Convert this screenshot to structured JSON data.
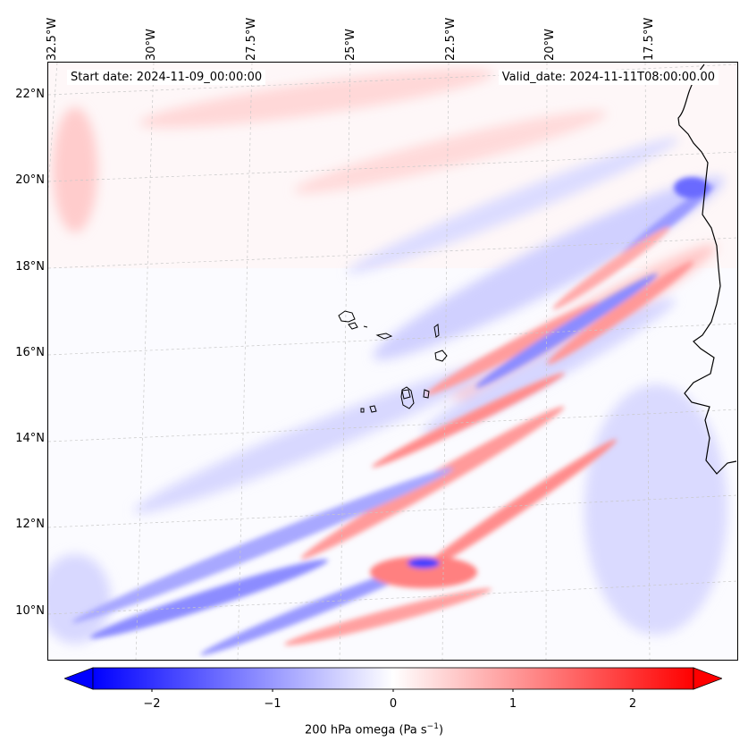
{
  "header": {
    "start_date": "Start date: 2024-11-09_00:00:00",
    "valid_date": "Valid_date: 2024-11-11T08:00:00.00"
  },
  "longitude_labels": [
    "32.5°W",
    "30°W",
    "27.5°W",
    "25°W",
    "22.5°W",
    "20°W",
    "17.5°W"
  ],
  "latitude_labels": [
    "22°N",
    "20°N",
    "18°N",
    "16°N",
    "14°N",
    "12°N",
    "10°N"
  ],
  "colorbar": {
    "label_prefix": "200 hPa omega (Pa s",
    "label_exp": "−1",
    "label_suffix": ")",
    "ticks": [
      "−2",
      "−1",
      "0",
      "1",
      "2"
    ],
    "tick_values": [
      -2,
      -1,
      0,
      1,
      2
    ],
    "range": [
      -2.6,
      2.6
    ],
    "colormap": "bwr",
    "colors": {
      "negative": "#0000ff",
      "zero": "#ffffff",
      "positive": "#ff0000"
    }
  },
  "map": {
    "field": "200 hPa omega",
    "projection": "lambert-conformal",
    "coastline_color": "#000000",
    "gridline_color": "#c8c8c8"
  }
}
